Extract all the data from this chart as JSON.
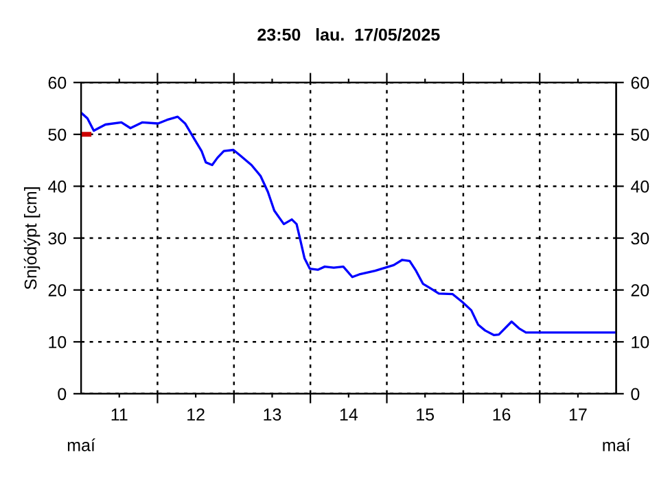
{
  "chart_data": {
    "type": "line",
    "title": "23:50   lau.  17/05/2025",
    "ylabel": "Snjódýpt [cm]",
    "annotations": [
      "maí",
      "maí"
    ],
    "series": [
      {
        "color": "#0000ff",
        "x": [
          "2025-05-11T00:20",
          "2025-05-11T02:00",
          "2025-05-11T04:00",
          "2025-05-11T05:30",
          "2025-05-11T07:40",
          "2025-05-11T12:40",
          "2025-05-11T15:30",
          "2025-05-11T19:10",
          "2025-05-12T00:10",
          "2025-05-12T03:00",
          "2025-05-12T06:20",
          "2025-05-12T08:40",
          "2025-05-12T11:40",
          "2025-05-12T13:50",
          "2025-05-12T15:10",
          "2025-05-12T17:10",
          "2025-05-12T18:50",
          "2025-05-12T20:50",
          "2025-05-12T23:50",
          "2025-05-13T02:00",
          "2025-05-13T05:30",
          "2025-05-13T08:20",
          "2025-05-13T10:40",
          "2025-05-13T12:40",
          "2025-05-13T15:40",
          "2025-05-13T18:10",
          "2025-05-13T19:40",
          "2025-05-13T20:40",
          "2025-05-13T22:10",
          "2025-05-13T23:50",
          "2025-05-14T02:20",
          "2025-05-14T04:30",
          "2025-05-14T07:20",
          "2025-05-14T10:20",
          "2025-05-14T13:10",
          "2025-05-14T15:20",
          "2025-05-14T20:20",
          "2025-05-15T02:10",
          "2025-05-15T04:50",
          "2025-05-15T07:10",
          "2025-05-15T09:10",
          "2025-05-15T11:20",
          "2025-05-15T13:30",
          "2025-05-15T16:20",
          "2025-05-15T20:40",
          "2025-05-15T23:40",
          "2025-05-16T02:30",
          "2025-05-16T04:40",
          "2025-05-16T06:50",
          "2025-05-16T09:40",
          "2025-05-16T11:10",
          "2025-05-16T15:10",
          "2025-05-16T17:30",
          "2025-05-16T19:40",
          "2025-05-17T23:50"
        ],
        "values": [
          54.0,
          53.1,
          50.7,
          51.2,
          51.9,
          52.3,
          51.2,
          52.3,
          52.1,
          52.8,
          53.4,
          52.1,
          49.0,
          46.8,
          44.6,
          44.1,
          45.5,
          46.8,
          47.0,
          45.9,
          44.1,
          42.0,
          38.9,
          35.3,
          32.7,
          33.6,
          32.7,
          30.1,
          26.1,
          24.1,
          23.9,
          24.5,
          24.3,
          24.5,
          22.5,
          23.0,
          23.7,
          24.8,
          25.8,
          25.6,
          23.7,
          21.2,
          20.4,
          19.3,
          19.2,
          17.7,
          16.1,
          13.3,
          12.2,
          11.3,
          11.4,
          13.9,
          12.6,
          11.8,
          11.8
        ]
      },
      {
        "color": "#cc0000",
        "x": [
          "2025-05-11T00:00",
          "2025-05-11T02:30"
        ],
        "values": [
          50,
          50
        ]
      }
    ],
    "xlim": [
      "2025-05-11T00:00",
      "2025-05-18T00:00"
    ],
    "xticks": [
      {
        "value": "2025-05-12T00:00",
        "label": null
      },
      {
        "value": "2025-05-13T00:00",
        "label": null
      },
      {
        "value": "2025-05-14T00:00",
        "label": null
      },
      {
        "value": "2025-05-15T00:00",
        "label": null
      },
      {
        "value": "2025-05-16T00:00",
        "label": null
      },
      {
        "value": "2025-05-17T00:00",
        "label": null
      },
      {
        "value": "2025-05-11T12:00",
        "label": "11"
      },
      {
        "value": "2025-05-12T12:00",
        "label": "12"
      },
      {
        "value": "2025-05-13T12:00",
        "label": "13"
      },
      {
        "value": "2025-05-14T12:00",
        "label": "14"
      },
      {
        "value": "2025-05-15T12:00",
        "label": "15"
      },
      {
        "value": "2025-05-16T12:00",
        "label": "16"
      },
      {
        "value": "2025-05-17T12:00",
        "label": "17"
      }
    ],
    "ylim": [
      0,
      60
    ],
    "yticks": [
      0,
      10,
      20,
      30,
      40,
      50,
      60
    ],
    "y2lim": [
      0,
      60
    ],
    "y2ticks": [
      0,
      10,
      20,
      30,
      40,
      50,
      60
    ],
    "grid": true,
    "line_style": "solid",
    "marker": "none"
  }
}
